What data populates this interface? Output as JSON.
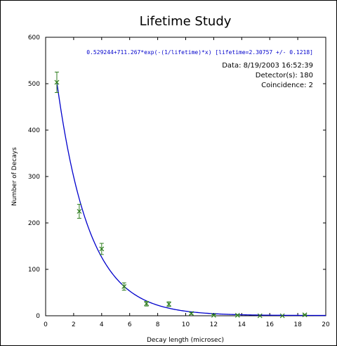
{
  "chart_data": {
    "type": "scatter",
    "title": "Lifetime Study",
    "xlabel": "Decay length (microsec)",
    "ylabel": "Number of Decays",
    "xlim": [
      0,
      20
    ],
    "ylim": [
      0,
      600
    ],
    "xticks": [
      0,
      2,
      4,
      6,
      8,
      10,
      12,
      14,
      16,
      18,
      20
    ],
    "yticks": [
      0,
      100,
      200,
      300,
      400,
      500,
      600
    ],
    "fit_label": "0.529244+711.267*exp(-(1/lifetime)*x) [lifetime=2.30757 +/- 0.1218]",
    "info": [
      "Data: 8/19/2003 16:52:39",
      "Detector(s): 180",
      "Coincidence: 2"
    ],
    "fit": {
      "offset": 0.529244,
      "amplitude": 711.267,
      "lifetime": 2.30757
    },
    "points": [
      {
        "x": 0.8,
        "y": 503,
        "err": 22
      },
      {
        "x": 2.4,
        "y": 225,
        "err": 15
      },
      {
        "x": 4.0,
        "y": 144,
        "err": 12
      },
      {
        "x": 5.6,
        "y": 63,
        "err": 8
      },
      {
        "x": 7.2,
        "y": 26,
        "err": 5
      },
      {
        "x": 8.8,
        "y": 25,
        "err": 5
      },
      {
        "x": 10.4,
        "y": 5,
        "err": 2
      },
      {
        "x": 12.0,
        "y": 1,
        "err": 1
      },
      {
        "x": 13.7,
        "y": 1,
        "err": 1
      },
      {
        "x": 15.3,
        "y": 0,
        "err": 0
      },
      {
        "x": 16.9,
        "y": 0,
        "err": 0
      },
      {
        "x": 18.5,
        "y": 2,
        "err": 1
      }
    ],
    "colors": {
      "points": "#2e7d1e",
      "fit": "#0000cc",
      "axis": "#000000"
    },
    "grid": false
  }
}
